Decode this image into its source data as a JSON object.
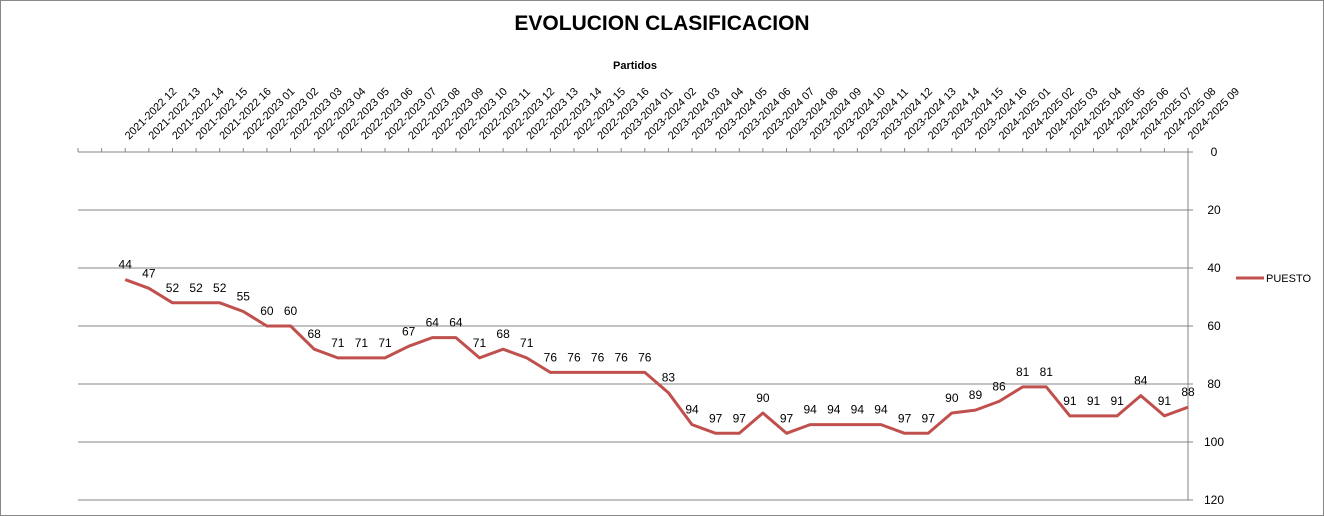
{
  "chart_data": {
    "type": "line",
    "title": "EVOLUCION CLASIFICACION",
    "xlabel": "Partidos",
    "ylabel": "",
    "ylim": [
      0,
      120
    ],
    "y_reversed": true,
    "y_ticks": [
      "0",
      "20",
      "40",
      "60",
      "80",
      "100",
      "120"
    ],
    "x_axis_position": "top",
    "y_axis_position": "right",
    "grid": "horizontal",
    "legend_position": "right",
    "categories": [
      "",
      "",
      "2021-2022 12",
      "2021-2022 13",
      "2021-2022 14",
      "2021-2022 15",
      "2021-2022 16",
      "2022-2023 01",
      "2022-2023 02",
      "2022-2023 03",
      "2022-2023 04",
      "2022-2023 05",
      "2022-2023 06",
      "2022-2023 07",
      "2022-2023 08",
      "2022-2023 09",
      "2022-2023 10",
      "2022-2023 11",
      "2022-2023 12",
      "2022-2023 13",
      "2022-2023 14",
      "2022-2023 15",
      "2022-2023 16",
      "2023-2024 01",
      "2023-2024 02",
      "2023-2024 03",
      "2023-2024 04",
      "2023-2024 05",
      "2023-2024 06",
      "2023-2024 07",
      "2023-2024 08",
      "2023-2024 09",
      "2023-2024 10",
      "2023-2024 11",
      "2023-2024 12",
      "2023-2024 13",
      "2023-2024 14",
      "2023-2024 15",
      "2023-2024 16",
      "2024-2025 01",
      "2024-2025 02",
      "2024-2025 03",
      "2024-2025 04",
      "2024-2025 05",
      "2024-2025 06",
      "2024-2025 07",
      "2024-2025 08",
      "2024-2025 09"
    ],
    "series": [
      {
        "name": "PUESTO",
        "color": "#c0504d",
        "values": [
          null,
          null,
          44,
          47,
          52,
          52,
          52,
          55,
          60,
          60,
          68,
          71,
          71,
          71,
          67,
          64,
          64,
          71,
          68,
          71,
          76,
          76,
          76,
          76,
          76,
          83,
          94,
          97,
          97,
          90,
          97,
          94,
          94,
          94,
          94,
          97,
          97,
          90,
          89,
          86,
          81,
          81,
          91,
          91,
          91,
          84,
          91,
          88
        ]
      }
    ]
  }
}
